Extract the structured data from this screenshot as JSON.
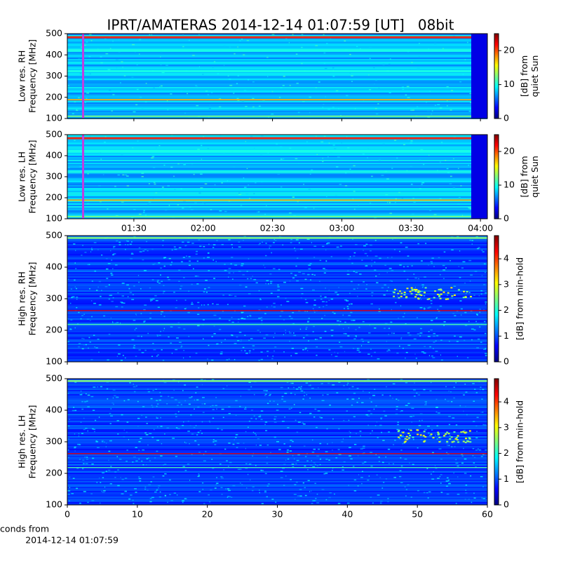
{
  "chart_data": [
    {
      "type": "spectrogram",
      "title": "IPRT/AMATERAS 2014-12-14 01:07:59 [UT]   08bit",
      "ylabel": [
        "Low res. RH",
        "Frequency [MHz]"
      ],
      "ylim": [
        100,
        500
      ],
      "yticks": [
        100,
        200,
        300,
        400,
        500
      ],
      "clim": [
        0,
        25
      ],
      "cticks": [
        0,
        10,
        20
      ],
      "clabel": [
        "[dB] from",
        "quiet Sun"
      ],
      "colormap": "jet"
    },
    {
      "type": "spectrogram",
      "ylabel": [
        "Low res. LH",
        "Frequency [MHz]"
      ],
      "ylim": [
        100,
        500
      ],
      "yticks": [
        100,
        200,
        300,
        400,
        500
      ],
      "xlim": [
        61.2,
        243
      ],
      "xticks": [
        {
          "value": 90,
          "label": "01:30"
        },
        {
          "value": 120,
          "label": "02:00"
        },
        {
          "value": 150,
          "label": "02:30"
        },
        {
          "value": 180,
          "label": "03:00"
        },
        {
          "value": 210,
          "label": "03:30"
        },
        {
          "value": 240,
          "label": "04:00"
        }
      ],
      "clim": [
        0,
        25
      ],
      "cticks": [
        0,
        10,
        20
      ],
      "clabel": [
        "[dB] from",
        "quiet Sun"
      ],
      "colormap": "jet"
    },
    {
      "type": "spectrogram",
      "ylabel": [
        "High res. RH",
        "Frequency [MHz]"
      ],
      "ylim": [
        100,
        500
      ],
      "yticks": [
        100,
        200,
        300,
        400,
        500
      ],
      "clim": [
        0,
        4.9
      ],
      "cticks": [
        0,
        1,
        2,
        3,
        4
      ],
      "clabel": [
        "[dB] from min-hold"
      ],
      "colormap": "jet"
    },
    {
      "type": "spectrogram",
      "ylabel": [
        "High res. LH",
        "Frequency [MHz]"
      ],
      "ylim": [
        100,
        500
      ],
      "yticks": [
        100,
        200,
        300,
        400,
        500
      ],
      "xlim": [
        0,
        60
      ],
      "xticks": [
        0,
        10,
        20,
        30,
        40,
        50,
        60
      ],
      "xlabel": [
        "Seconds from",
        "2014-12-14 01:07:59"
      ],
      "clim": [
        0,
        4.9
      ],
      "cticks": [
        0,
        1,
        2,
        3,
        4
      ],
      "clabel": [
        "[dB] from min-hold"
      ],
      "colormap": "jet"
    }
  ]
}
